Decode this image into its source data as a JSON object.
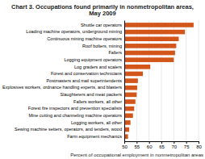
{
  "chart_data": {
    "type": "bar",
    "orientation": "horizontal",
    "title": "Chart 3. Occupations found primarily in nonmetropolitan areas,\nMay 2009",
    "xlabel": "Percent of occupational employment in nonmetropolitan areas",
    "categories": [
      "Farm equipment mechanics",
      "Sewing machine setters, operators, and tenders, wood",
      "Logging workers, all other",
      "Mine cutting and channeling machine operators",
      "Forest fire inspectors and prevention specialists",
      "Fallers workers, all other",
      "Slaughterers and meat packers",
      "Explosives workers, ordnance handling experts, and blasters",
      "Postmasters and mail superintendents",
      "Forest and conservation technicians",
      "Log graders and scalers",
      "Logging equipment operators",
      "Fallers",
      "Roof bolters, mining",
      "Continuous mining machine operators",
      "Loading machine operators, underground mining",
      "Shuttle car operators"
    ],
    "values": [
      51.5,
      52.0,
      52.5,
      53.5,
      54.0,
      54.5,
      55.0,
      55.2,
      55.5,
      57.5,
      60.5,
      70.0,
      70.5,
      71.0,
      72.0,
      74.5,
      78.0
    ],
    "color": "#d2561a",
    "xlim": [
      50,
      80
    ],
    "xticks": [
      50,
      55,
      60,
      65,
      70,
      75,
      80
    ],
    "grid": true
  }
}
